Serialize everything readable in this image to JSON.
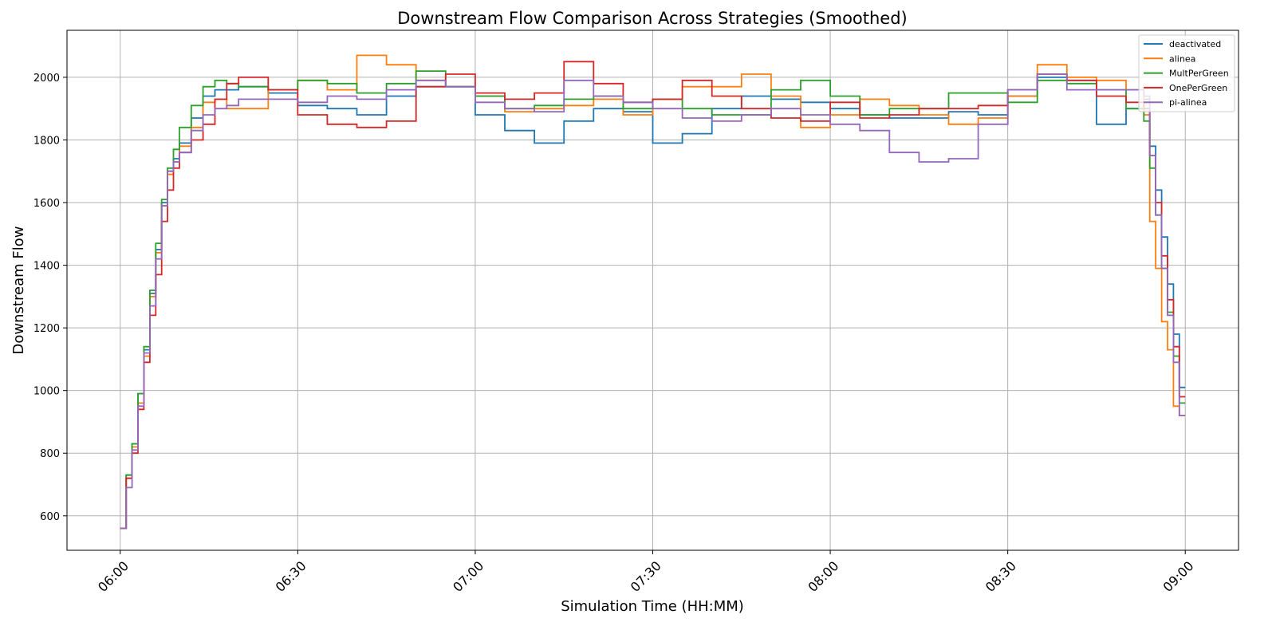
{
  "chart_data": {
    "type": "line",
    "title": "Downstream Flow Comparison Across Strategies (Smoothed)",
    "xlabel": "Simulation Time (HH:MM)",
    "ylabel": "Downstream Flow",
    "x_ticks": [
      "06:00",
      "06:30",
      "07:00",
      "07:30",
      "08:00",
      "08:30",
      "09:00"
    ],
    "y_ticks": [
      600,
      800,
      1000,
      1200,
      1400,
      1600,
      1800,
      2000
    ],
    "xlim": [
      "05:51",
      "09:09"
    ],
    "ylim": [
      490,
      2150
    ],
    "grid": true,
    "step": true,
    "legend_position": "top-right",
    "x": [
      "06:00",
      "06:01",
      "06:02",
      "06:03",
      "06:04",
      "06:05",
      "06:06",
      "06:07",
      "06:08",
      "06:09",
      "06:10",
      "06:12",
      "06:14",
      "06:16",
      "06:18",
      "06:20",
      "06:25",
      "06:30",
      "06:35",
      "06:40",
      "06:45",
      "06:50",
      "06:55",
      "07:00",
      "07:05",
      "07:10",
      "07:15",
      "07:20",
      "07:25",
      "07:30",
      "07:35",
      "07:40",
      "07:45",
      "07:50",
      "07:55",
      "08:00",
      "08:05",
      "08:10",
      "08:15",
      "08:20",
      "08:25",
      "08:30",
      "08:35",
      "08:40",
      "08:45",
      "08:50",
      "08:53",
      "08:54",
      "08:55",
      "08:56",
      "08:57",
      "08:58",
      "08:59",
      "09:00"
    ],
    "series": [
      {
        "name": "deactivated",
        "color": "#1f77b4",
        "values": [
          560,
          730,
          830,
          990,
          1130,
          1310,
          1450,
          1600,
          1700,
          1740,
          1790,
          1870,
          1940,
          1960,
          1960,
          1970,
          1950,
          1910,
          1900,
          1880,
          1940,
          1970,
          1970,
          1880,
          1830,
          1790,
          1860,
          1900,
          1890,
          1790,
          1820,
          1900,
          1940,
          1930,
          1920,
          1900,
          1880,
          1870,
          1870,
          1890,
          1880,
          1940,
          2000,
          1990,
          1850,
          1900,
          1930,
          1780,
          1640,
          1490,
          1340,
          1180,
          1010,
          1010
        ]
      },
      {
        "name": "alinea",
        "color": "#ff7f0e",
        "values": [
          560,
          720,
          820,
          960,
          1110,
          1300,
          1440,
          1590,
          1690,
          1730,
          1780,
          1840,
          1920,
          1930,
          1900,
          1900,
          1960,
          1990,
          1960,
          2070,
          2040,
          1990,
          1970,
          1940,
          1890,
          1900,
          1910,
          1930,
          1880,
          1930,
          1970,
          1970,
          2010,
          1940,
          1840,
          1880,
          1930,
          1910,
          1880,
          1850,
          1870,
          1940,
          2040,
          2000,
          1990,
          1960,
          1880,
          1540,
          1390,
          1220,
          1130,
          950,
          920,
          920
        ]
      },
      {
        "name": "MultPerGreen",
        "color": "#2ca02c",
        "values": [
          560,
          730,
          830,
          990,
          1140,
          1320,
          1470,
          1610,
          1710,
          1770,
          1840,
          1910,
          1970,
          1990,
          1980,
          1970,
          1960,
          1990,
          1980,
          1950,
          1980,
          2020,
          1970,
          1940,
          1900,
          1910,
          1930,
          1940,
          1900,
          1930,
          1900,
          1880,
          1880,
          1960,
          1990,
          1940,
          1880,
          1900,
          1900,
          1950,
          1950,
          1920,
          1990,
          1980,
          1960,
          1900,
          1860,
          1710,
          1560,
          1390,
          1250,
          1110,
          960,
          960
        ]
      },
      {
        "name": "OnePerGreen",
        "color": "#d62728",
        "values": [
          560,
          720,
          800,
          940,
          1090,
          1240,
          1370,
          1540,
          1640,
          1710,
          1760,
          1800,
          1850,
          1930,
          1980,
          2000,
          1960,
          1880,
          1850,
          1840,
          1860,
          1970,
          2010,
          1950,
          1930,
          1950,
          2050,
          1980,
          1920,
          1930,
          1990,
          1940,
          1900,
          1870,
          1860,
          1920,
          1870,
          1880,
          1900,
          1900,
          1910,
          1960,
          2010,
          1990,
          1940,
          1920,
          1900,
          1750,
          1600,
          1430,
          1290,
          1140,
          980,
          980
        ]
      },
      {
        "name": "pi-alinea",
        "color": "#9467bd",
        "values": [
          560,
          690,
          810,
          950,
          1120,
          1270,
          1420,
          1590,
          1700,
          1730,
          1760,
          1830,
          1880,
          1900,
          1910,
          1930,
          1930,
          1920,
          1940,
          1930,
          1960,
          1990,
          1970,
          1920,
          1900,
          1890,
          1990,
          1940,
          1920,
          1900,
          1870,
          1860,
          1880,
          1900,
          1880,
          1850,
          1830,
          1760,
          1730,
          1740,
          1850,
          1960,
          2010,
          1960,
          1960,
          1960,
          1940,
          1750,
          1560,
          1390,
          1240,
          1090,
          920,
          920
        ]
      }
    ]
  }
}
